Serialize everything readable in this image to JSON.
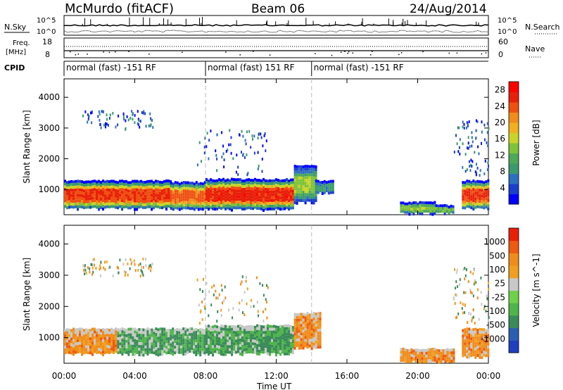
{
  "header": {
    "title": "McMurdo (fitACF)",
    "beam": "Beam 06",
    "date": "24/Aug/2014"
  },
  "strip_labels": {
    "nsky": "N.Sky",
    "nsearch": "N.Search",
    "freq": "Freq.",
    "freq_unit": "[MHz]",
    "nave": "Nave",
    "cpid": "CPID"
  },
  "strip_ticks": {
    "noise_left_top": "10^5",
    "noise_left_bottom": "10^0",
    "noise_right_top": "10^5",
    "noise_right_bottom": "10^0",
    "freq_top": "18",
    "freq_bottom": "8",
    "nave_top": "60",
    "nave_bottom": "0"
  },
  "cpid_segments": [
    {
      "label": "normal (fast) -151 RF",
      "start_h": 0,
      "end_h": 8
    },
    {
      "label": "normal (fast) 151 RF",
      "start_h": 8,
      "end_h": 14
    },
    {
      "label": "normal (fast) -151 RF",
      "start_h": 14,
      "end_h": 24
    }
  ],
  "chart_data": [
    {
      "type": "heatmap",
      "name": "power",
      "xlabel": "Time UT",
      "ylabel": "Slant Range [km]",
      "xlim": [
        0,
        24
      ],
      "ylim": [
        180,
        4600
      ],
      "x_ticks": [
        "00:00",
        "04:00",
        "08:00",
        "12:00",
        "16:00",
        "20:00",
        "00:00"
      ],
      "y_ticks": [
        1000,
        2000,
        3000,
        4000
      ],
      "colorbar": {
        "label": "Power [dB]",
        "range": [
          0,
          30
        ],
        "ticks": [
          4,
          8,
          12,
          16,
          20,
          24,
          28
        ],
        "colors": [
          "#0000ff",
          "#1a3fcc",
          "#2f6fc0",
          "#3a9a6e",
          "#4da85a",
          "#7ec23a",
          "#c9d42a",
          "#f0b020",
          "#f08c1a",
          "#ee5010",
          "#e8200a",
          "#ff0000"
        ]
      },
      "bands": [
        {
          "t0": 0.0,
          "t1": 6.0,
          "r0": 400,
          "r1": 1300,
          "peak_db": 26
        },
        {
          "t0": 6.0,
          "t1": 8.0,
          "r0": 380,
          "r1": 1250,
          "peak_db": 24
        },
        {
          "t0": 8.0,
          "t1": 13.0,
          "r0": 380,
          "r1": 1350,
          "peak_db": 27
        },
        {
          "t0": 13.0,
          "t1": 14.2,
          "r0": 600,
          "r1": 1800,
          "peak_db": 14
        },
        {
          "t0": 14.2,
          "t1": 15.2,
          "r0": 900,
          "r1": 1300,
          "peak_db": 8
        },
        {
          "t0": 19.0,
          "t1": 21.0,
          "r0": 250,
          "r1": 600,
          "peak_db": 14
        },
        {
          "t0": 21.0,
          "t1": 22.0,
          "r0": 250,
          "r1": 500,
          "peak_db": 12
        },
        {
          "t0": 22.5,
          "t1": 24.0,
          "r0": 400,
          "r1": 1300,
          "peak_db": 26
        }
      ],
      "scatter_regions": [
        {
          "t0": 1.0,
          "t1": 5.0,
          "r0": 3000,
          "r1": 3600
        },
        {
          "t0": 7.5,
          "t1": 11.5,
          "r0": 1500,
          "r1": 3000
        },
        {
          "t0": 22.0,
          "t1": 24.0,
          "r0": 1500,
          "r1": 3300
        }
      ]
    },
    {
      "type": "heatmap",
      "name": "velocity",
      "xlabel": "Time UT",
      "ylabel": "Slant Range [km]",
      "xlim": [
        0,
        24
      ],
      "ylim": [
        180,
        4600
      ],
      "x_ticks": [
        "00:00",
        "04:00",
        "08:00",
        "12:00",
        "16:00",
        "20:00",
        "00:00"
      ],
      "y_ticks": [
        1000,
        2000,
        3000,
        4000
      ],
      "colorbar": {
        "label": "Velocity [m s^-1]",
        "tick_labels": [
          "1000",
          "500",
          "100",
          "25",
          "-25",
          "-100",
          "-500",
          "-1000"
        ],
        "colors": [
          "#1f3fbf",
          "#2a5fb0",
          "#3a8a5a",
          "#4fb54a",
          "#6fd04a",
          "#c8c8c8",
          "#f0a020",
          "#f08c1a",
          "#ee5a10",
          "#e8200a"
        ]
      },
      "bands": [
        {
          "t0": 0.0,
          "t1": 3.0,
          "r0": 500,
          "r1": 1300,
          "velocity_class": "orange"
        },
        {
          "t0": 3.0,
          "t1": 5.5,
          "r0": 500,
          "r1": 1300,
          "velocity_class": "green"
        },
        {
          "t0": 5.5,
          "t1": 8.0,
          "r0": 500,
          "r1": 1300,
          "velocity_class": "green"
        },
        {
          "t0": 8.0,
          "t1": 13.0,
          "r0": 500,
          "r1": 1400,
          "velocity_class": "green"
        },
        {
          "t0": 13.0,
          "t1": 14.5,
          "r0": 700,
          "r1": 1800,
          "velocity_class": "orange"
        },
        {
          "t0": 19.0,
          "t1": 22.0,
          "r0": 250,
          "r1": 650,
          "velocity_class": "orange"
        },
        {
          "t0": 22.5,
          "t1": 24.0,
          "r0": 400,
          "r1": 1300,
          "velocity_class": "orange"
        }
      ]
    }
  ]
}
